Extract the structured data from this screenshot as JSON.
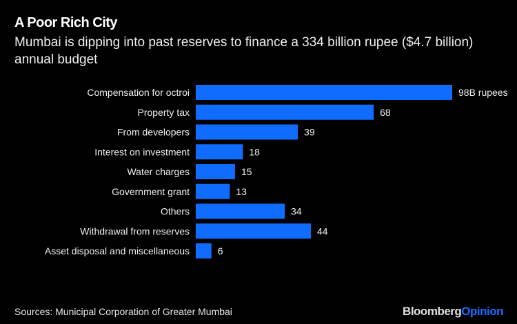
{
  "title": "A Poor Rich City",
  "subtitle": "Mumbai is dipping into past reserves to finance a 334 billion rupee ($4.7 billion) annual budget",
  "source": "Sources: Municipal Corporation of Greater Mumbai",
  "logo": {
    "part1": "Bloomberg",
    "part2": "Opinion"
  },
  "colors": {
    "bar": "#0f6cff",
    "background": "#000000",
    "text": "#ffffff"
  },
  "chart_data": {
    "type": "bar",
    "orientation": "horizontal",
    "categories": [
      "Compensation for octroi",
      "Property tax",
      "From developers",
      "Interest on investment",
      "Water charges",
      "Government grant",
      "Others",
      "Withdrawal from reserves",
      "Asset disposal and miscellaneous"
    ],
    "values": [
      98,
      68,
      39,
      18,
      15,
      13,
      34,
      44,
      6
    ],
    "data_labels": [
      "98B rupees",
      "68",
      "39",
      "18",
      "15",
      "13",
      "34",
      "44",
      "6"
    ],
    "unit": "billion rupees",
    "xlim": [
      0,
      98
    ],
    "grid": false
  }
}
